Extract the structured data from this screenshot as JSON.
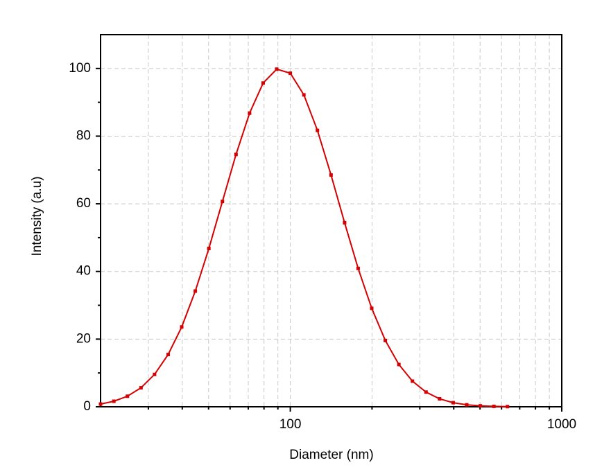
{
  "chart_data": {
    "type": "line",
    "x_label": "Diameter (nm)",
    "y_label": "Intensity (a.u)",
    "log_x": true,
    "grid": true,
    "xlim": [
      20,
      1000
    ],
    "xticks": [
      100,
      1000
    ],
    "x_minor_ticks": [
      30,
      40,
      50,
      60,
      70,
      80,
      90,
      200,
      300,
      400,
      500,
      600,
      700,
      800,
      900
    ],
    "ylim": [
      0,
      110
    ],
    "yticks": [
      0,
      20,
      40,
      60,
      80,
      100
    ],
    "y_minor_ticks": [
      10,
      30,
      50,
      70,
      90
    ],
    "x": [
      20,
      22.39,
      25.12,
      28.18,
      31.62,
      35.48,
      39.81,
      44.67,
      50.12,
      56.23,
      63.1,
      70.79,
      79.43,
      89.13,
      100,
      112.2,
      125.9,
      141.3,
      158.5,
      177.8,
      199.5,
      223.9,
      251.2,
      281.8,
      316.2,
      354.8,
      398.1,
      446.7,
      501.2,
      562.3,
      631
    ],
    "series": [
      {
        "color": "#d60000",
        "values": [
          0.8,
          1.64,
          3.12,
          5.61,
          9.57,
          15.45,
          23.6,
          34.2,
          46.8,
          60.7,
          74.6,
          86.8,
          95.7,
          99.8,
          98.6,
          92.2,
          81.7,
          68.5,
          54.4,
          40.9,
          29.1,
          19.6,
          12.5,
          7.58,
          4.34,
          2.35,
          1.21,
          0.59,
          0.27,
          0.12,
          0.05
        ]
      }
    ]
  }
}
